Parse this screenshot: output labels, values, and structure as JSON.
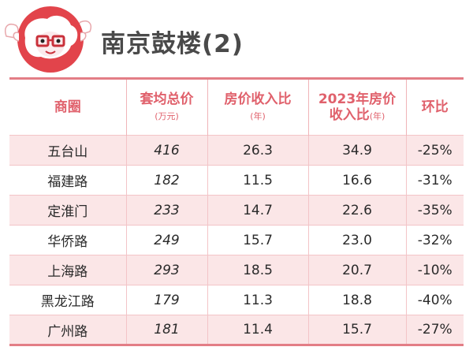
{
  "title": "南京鼓楼(2)",
  "colors": {
    "accent": "#e0616c",
    "row_tint": "#fbe6e7",
    "mascot_red": "#e2444b"
  },
  "mascot": "sheep-mascot",
  "table": {
    "headers": [
      {
        "label": "商圈",
        "unit": ""
      },
      {
        "label": "套均总价",
        "unit": "(万元)"
      },
      {
        "label": "房价收入比",
        "unit": "(年)"
      },
      {
        "label": "2023年房价",
        "label2": "收入比",
        "unit": "(年)"
      },
      {
        "label": "环比",
        "unit": ""
      }
    ],
    "rows": [
      {
        "area": "五台山",
        "avg_price": "416",
        "ratio": "26.3",
        "ratio_2023": "34.9",
        "change": "-25%"
      },
      {
        "area": "福建路",
        "avg_price": "182",
        "ratio": "11.5",
        "ratio_2023": "16.6",
        "change": "-31%"
      },
      {
        "area": "定淮门",
        "avg_price": "233",
        "ratio": "14.7",
        "ratio_2023": "22.6",
        "change": "-35%"
      },
      {
        "area": "华侨路",
        "avg_price": "249",
        "ratio": "15.7",
        "ratio_2023": "23.0",
        "change": "-32%"
      },
      {
        "area": "上海路",
        "avg_price": "293",
        "ratio": "18.5",
        "ratio_2023": "20.7",
        "change": "-10%"
      },
      {
        "area": "黑龙江路",
        "avg_price": "179",
        "ratio": "11.3",
        "ratio_2023": "18.8",
        "change": "-40%"
      },
      {
        "area": "广州路",
        "avg_price": "181",
        "ratio": "11.4",
        "ratio_2023": "15.7",
        "change": "-27%"
      }
    ]
  }
}
